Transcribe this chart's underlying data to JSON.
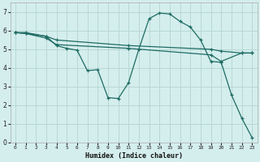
{
  "background_color": "#d4eeed",
  "grid_color": "#b8d8d5",
  "line_color": "#1e6b63",
  "xlabel": "Humidex (Indice chaleur)",
  "xlim": [
    -0.5,
    23.5
  ],
  "ylim": [
    0,
    7.5
  ],
  "xtick_vals": [
    0,
    1,
    2,
    3,
    4,
    5,
    6,
    7,
    8,
    9,
    10,
    11,
    12,
    13,
    14,
    15,
    16,
    17,
    18,
    19,
    20,
    21,
    22,
    23
  ],
  "ytick_vals": [
    0,
    1,
    2,
    3,
    4,
    5,
    6,
    7
  ],
  "lines": [
    {
      "x": [
        0,
        1,
        3,
        4,
        5,
        6,
        7,
        8,
        9,
        10,
        11,
        12,
        13,
        14,
        15,
        16,
        17,
        18,
        19,
        20,
        21,
        22,
        23
      ],
      "y": [
        5.9,
        5.9,
        5.7,
        5.2,
        5.05,
        4.95,
        3.85,
        3.9,
        2.4,
        2.35,
        3.2,
        5.0,
        6.65,
        6.95,
        6.9,
        6.5,
        6.2,
        5.5,
        4.35,
        4.3,
        2.55,
        1.3,
        0.25
      ]
    },
    {
      "x": [
        0,
        1,
        3,
        4,
        11,
        19,
        20,
        22,
        23
      ],
      "y": [
        5.9,
        5.85,
        5.7,
        5.5,
        5.2,
        5.0,
        4.9,
        4.8,
        4.8
      ]
    },
    {
      "x": [
        0,
        1,
        3,
        4,
        11,
        19,
        20,
        22,
        23
      ],
      "y": [
        5.9,
        5.85,
        5.6,
        5.25,
        5.05,
        4.7,
        4.35,
        4.8,
        4.8
      ]
    }
  ]
}
